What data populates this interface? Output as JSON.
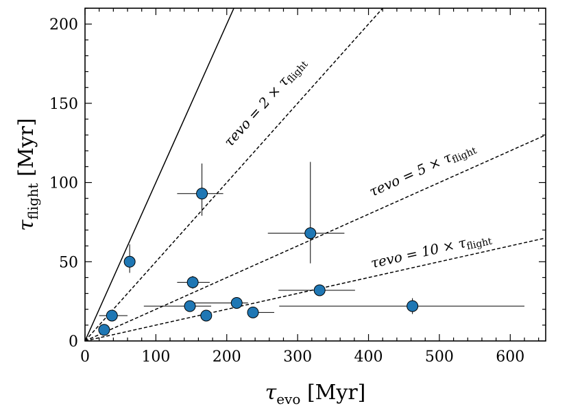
{
  "chart_data": {
    "type": "scatter",
    "xlabel": "τevo [Myr]",
    "ylabel": "τflight [Myr]",
    "xlabel_parts": {
      "symbol": "τ",
      "sub": "evo",
      "unit": "[Myr]"
    },
    "ylabel_parts": {
      "symbol": "τ",
      "sub": "flight",
      "unit": "[Myr]"
    },
    "xlim": [
      0,
      650
    ],
    "ylim": [
      0,
      210
    ],
    "xticks": [
      0,
      100,
      200,
      300,
      400,
      500,
      600
    ],
    "yticks": [
      0,
      50,
      100,
      150,
      200
    ],
    "xtick_labels": [
      "0",
      "100",
      "200",
      "300",
      "400",
      "500",
      "600"
    ],
    "ytick_labels": [
      "0",
      "50",
      "100",
      "150",
      "200"
    ],
    "x_minor_step": 20,
    "y_minor_step": 10,
    "marker_color": "#1f77b4",
    "points": [
      {
        "x": 27,
        "y": 7,
        "xerr": [
          0,
          0
        ],
        "yerr": [
          0,
          0
        ]
      },
      {
        "x": 38,
        "y": 16,
        "xerr": [
          18,
          22
        ],
        "yerr": [
          0,
          0
        ]
      },
      {
        "x": 63,
        "y": 50,
        "xerr": [
          0,
          0
        ],
        "yerr": [
          7,
          11
        ]
      },
      {
        "x": 165,
        "y": 93,
        "xerr": [
          35,
          30
        ],
        "yerr": [
          14,
          19
        ]
      },
      {
        "x": 152,
        "y": 37,
        "xerr": [
          22,
          24
        ],
        "yerr": [
          4,
          4
        ]
      },
      {
        "x": 148,
        "y": 22,
        "xerr": [
          65,
          30
        ],
        "yerr": [
          0,
          0
        ]
      },
      {
        "x": 171,
        "y": 16,
        "xerr": [
          0,
          0
        ],
        "yerr": [
          0,
          0
        ]
      },
      {
        "x": 214,
        "y": 24,
        "xerr": [
          62,
          16
        ],
        "yerr": [
          0,
          0
        ]
      },
      {
        "x": 237,
        "y": 18,
        "xerr": [
          0,
          30
        ],
        "yerr": [
          0,
          0
        ]
      },
      {
        "x": 318,
        "y": 68,
        "xerr": [
          60,
          48
        ],
        "yerr": [
          19,
          45
        ]
      },
      {
        "x": 331,
        "y": 32,
        "xerr": [
          58,
          50
        ],
        "yerr": [
          0,
          0
        ]
      },
      {
        "x": 462,
        "y": 22,
        "xerr": [
          188,
          158
        ],
        "yerr": [
          5,
          5
        ]
      }
    ],
    "reference_lines": [
      {
        "slope": 1,
        "style": "solid"
      },
      {
        "slope": 0.5,
        "style": "dashed"
      },
      {
        "slope": 0.2,
        "style": "dashed"
      },
      {
        "slope": 0.1,
        "style": "dashed"
      }
    ],
    "annotations": [
      {
        "main": "τevo = 2 × τ",
        "sub": "flight",
        "text": "τevo = 2 × τflight",
        "x": 205,
        "y": 122
      },
      {
        "main": "τevo = 5 × τ",
        "sub": "flight",
        "text": "τevo = 5 × τflight",
        "x": 405,
        "y": 91
      },
      {
        "main": "τevo = 10 × τ",
        "sub": "flight",
        "text": "τevo = 10 × τflight",
        "x": 405,
        "y": 46
      }
    ]
  }
}
